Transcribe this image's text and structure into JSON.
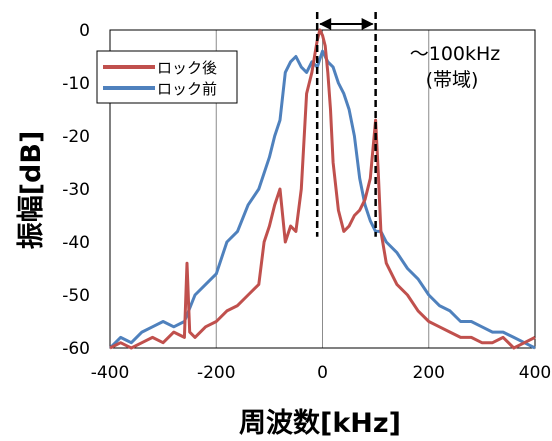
{
  "chart_data": {
    "type": "line",
    "title": "",
    "xlabel": "周波数[kHz]",
    "ylabel": "振幅[dB]",
    "xlim": [
      -400,
      400
    ],
    "ylim": [
      -60,
      0
    ],
    "xticks": [
      "-400",
      "-200",
      "0",
      "200",
      "400"
    ],
    "yticks": [
      "0",
      "-10",
      "-20",
      "-30",
      "-40",
      "-50",
      "-60"
    ],
    "grid": "vertical",
    "legend": "top-left",
    "colors": {
      "after": "#c0504d",
      "before": "#4f81bd"
    },
    "annotations": {
      "line1": "～100kHz",
      "line2": "(帯域)",
      "band": [
        -10,
        100
      ]
    },
    "series": [
      {
        "name": "ロック後",
        "x": [
          -400,
          -380,
          -360,
          -340,
          -320,
          -300,
          -280,
          -260,
          -255,
          -250,
          -240,
          -220,
          -200,
          -180,
          -160,
          -140,
          -120,
          -110,
          -100,
          -90,
          -80,
          -70,
          -60,
          -50,
          -40,
          -30,
          -20,
          -15,
          -10,
          -5,
          0,
          5,
          10,
          15,
          20,
          30,
          40,
          50,
          60,
          70,
          80,
          90,
          100,
          105,
          110,
          120,
          140,
          160,
          180,
          200,
          220,
          240,
          260,
          280,
          300,
          320,
          340,
          360,
          380,
          400
        ],
        "values": [
          -60,
          -59,
          -60,
          -59,
          -58,
          -59,
          -57,
          -58,
          -44,
          -57,
          -58,
          -56,
          -55,
          -53,
          -52,
          -50,
          -48,
          -40,
          -37,
          -33,
          -30,
          -40,
          -37,
          -38,
          -30,
          -12,
          -8,
          -5,
          -2,
          0,
          -1,
          -3,
          -8,
          -15,
          -25,
          -34,
          -38,
          -37,
          -35,
          -34,
          -32,
          -28,
          -17,
          -27,
          -38,
          -44,
          -48,
          -50,
          -53,
          -55,
          -56,
          -57,
          -58,
          -58,
          -59,
          -59,
          -58,
          -60,
          -59,
          -58
        ]
      },
      {
        "name": "ロック前",
        "x": [
          -400,
          -380,
          -360,
          -340,
          -320,
          -300,
          -280,
          -260,
          -240,
          -220,
          -200,
          -180,
          -160,
          -140,
          -120,
          -100,
          -90,
          -80,
          -70,
          -60,
          -50,
          -40,
          -30,
          -20,
          -10,
          0,
          10,
          20,
          30,
          40,
          50,
          60,
          70,
          80,
          90,
          100,
          110,
          120,
          140,
          160,
          180,
          200,
          220,
          240,
          260,
          280,
          300,
          320,
          340,
          360,
          380,
          400
        ],
        "values": [
          -60,
          -58,
          -59,
          -57,
          -56,
          -55,
          -56,
          -55,
          -50,
          -48,
          -46,
          -40,
          -38,
          -33,
          -30,
          -24,
          -20,
          -17,
          -8,
          -6,
          -5,
          -7,
          -8,
          -6,
          -7,
          -4,
          -6,
          -7,
          -10,
          -12,
          -15,
          -20,
          -28,
          -33,
          -36,
          -38,
          -38,
          -40,
          -42,
          -45,
          -47,
          -50,
          -52,
          -53,
          -55,
          -55,
          -56,
          -57,
          -57,
          -58,
          -59,
          -60
        ]
      }
    ]
  }
}
